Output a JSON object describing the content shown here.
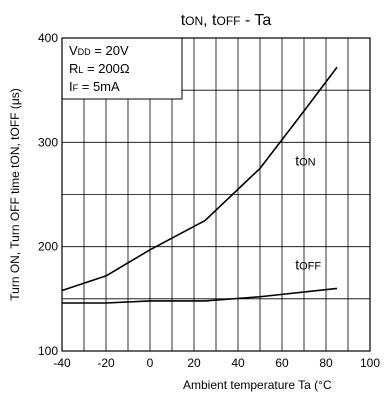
{
  "chart_data": {
    "type": "line",
    "title_parts": [
      {
        "text": "t",
        "sub": false
      },
      {
        "text": "ON",
        "sub": true
      },
      {
        "text": ", t",
        "sub": false
      },
      {
        "text": "OFF",
        "sub": true
      },
      {
        "text": " - Ta",
        "sub": false
      }
    ],
    "xlabel": "Ambient temperature Ta (°C",
    "ylabel": "Turn ON, Turn OFF time tON, tOFF (μs)",
    "xlim": [
      -40,
      100
    ],
    "ylim": [
      100,
      400
    ],
    "x_ticks": [
      -40,
      -20,
      0,
      20,
      40,
      60,
      80,
      100
    ],
    "x_tick_labels": [
      "-40",
      "-20",
      "0",
      "20",
      "40",
      "60",
      "80",
      "100"
    ],
    "y_ticks": [
      100,
      200,
      300,
      400
    ],
    "y_tick_labels": [
      "100",
      "200",
      "300",
      "400"
    ],
    "x_minor_step": 10,
    "y_minor_step": 50,
    "grid": true,
    "conditions": [
      {
        "main": "V",
        "sub": "DD",
        "rest": " = 20V"
      },
      {
        "main": "R",
        "sub": "L",
        "rest": " = 200Ω"
      },
      {
        "main": "I",
        "sub": "F",
        "rest": " = 5mA"
      }
    ],
    "series": [
      {
        "name": "tON",
        "label_main": "t",
        "label_sub": "ON",
        "label_pos": [
          66,
          278
        ],
        "x": [
          -40,
          -20,
          0,
          25,
          50,
          70,
          85
        ],
        "y": [
          158,
          172,
          197,
          225,
          275,
          330,
          372
        ]
      },
      {
        "name": "tOFF",
        "label_main": "t",
        "label_sub": "OFF",
        "label_pos": [
          66,
          178
        ],
        "x": [
          -40,
          -20,
          0,
          25,
          50,
          85
        ],
        "y": [
          146,
          146,
          148,
          148,
          152,
          160
        ]
      }
    ]
  }
}
